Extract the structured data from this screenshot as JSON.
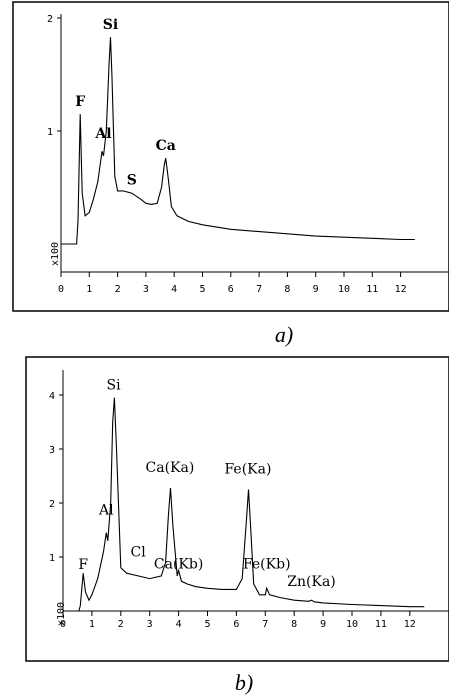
{
  "chart_data": [
    {
      "type": "line",
      "caption": "a)",
      "xlim": [
        0,
        12.5
      ],
      "ylim": [
        0,
        2
      ],
      "x_ticks": [
        "0",
        "1",
        "2",
        "3",
        "4",
        "5",
        "6",
        "7",
        "8",
        "9",
        "10",
        "11",
        "12"
      ],
      "y_ticks": [
        "1",
        "2"
      ],
      "y_scale_label": "x100",
      "peak_labels": [
        {
          "text": "F",
          "x": 0.68,
          "y": 1.15
        },
        {
          "text": "Al",
          "x": 1.5,
          "y": 0.83
        },
        {
          "text": "Si",
          "x": 1.75,
          "y": 1.83
        },
        {
          "text": "S",
          "x": 2.5,
          "y": 0.42
        },
        {
          "text": "Ca",
          "x": 3.7,
          "y": 0.76
        }
      ],
      "series": [
        {
          "x": [
            0,
            0.55,
            0.6,
            0.68,
            0.75,
            0.85,
            1.0,
            1.15,
            1.3,
            1.45,
            1.5,
            1.6,
            1.7,
            1.75,
            1.8,
            1.9,
            2.0,
            2.2,
            2.5,
            2.8,
            3.0,
            3.2,
            3.4,
            3.55,
            3.65,
            3.7,
            3.78,
            3.9,
            4.1,
            4.5,
            5,
            6,
            7,
            8,
            9,
            10,
            11,
            12,
            12.5
          ],
          "y": [
            0,
            0,
            0.2,
            1.15,
            0.45,
            0.25,
            0.28,
            0.4,
            0.55,
            0.82,
            0.78,
            1.0,
            1.6,
            1.83,
            1.5,
            0.6,
            0.47,
            0.47,
            0.45,
            0.4,
            0.36,
            0.35,
            0.36,
            0.5,
            0.7,
            0.76,
            0.6,
            0.33,
            0.25,
            0.2,
            0.17,
            0.13,
            0.11,
            0.09,
            0.07,
            0.06,
            0.05,
            0.04,
            0.04
          ]
        }
      ]
    },
    {
      "type": "line",
      "caption": "b)",
      "xlim": [
        0,
        12.5
      ],
      "ylim": [
        0,
        4
      ],
      "x_ticks": [
        "0",
        "1",
        "2",
        "3",
        "4",
        "5",
        "6",
        "7",
        "8",
        "9",
        "10",
        "11",
        "12"
      ],
      "y_ticks": [
        "1",
        "2",
        "3",
        "4"
      ],
      "y_scale_label": "x100",
      "peak_labels": [
        {
          "text": "F",
          "x": 0.7,
          "y": 0.7
        },
        {
          "text": "Al",
          "x": 1.5,
          "y": 1.45
        },
        {
          "text": "Si",
          "x": 1.75,
          "y": 3.95
        },
        {
          "text": "Cl",
          "x": 2.6,
          "y": 0.75
        },
        {
          "text": "Ca(Ka)",
          "x": 3.7,
          "y": 2.28
        },
        {
          "text": "Ca(Kb)",
          "x": 4.0,
          "y": 0.75
        },
        {
          "text": "Fe(Ka)",
          "x": 6.4,
          "y": 2.25
        },
        {
          "text": "Fe(Kb)",
          "x": 7.05,
          "y": 0.42
        },
        {
          "text": "Zn(Ka)",
          "x": 8.6,
          "y": 0.2
        }
      ],
      "series": [
        {
          "x": [
            0,
            0.55,
            0.6,
            0.7,
            0.78,
            0.9,
            1.0,
            1.2,
            1.4,
            1.5,
            1.55,
            1.65,
            1.72,
            1.78,
            1.85,
            2.0,
            2.2,
            2.6,
            3.0,
            3.4,
            3.55,
            3.65,
            3.72,
            3.8,
            3.95,
            4.0,
            4.1,
            4.3,
            4.6,
            5,
            5.5,
            6.0,
            6.2,
            6.35,
            6.42,
            6.5,
            6.6,
            6.8,
            7.0,
            7.05,
            7.15,
            7.5,
            8,
            8.5,
            8.6,
            8.7,
            9,
            10,
            11,
            12,
            12.5
          ],
          "y": [
            0,
            0,
            0.1,
            0.7,
            0.35,
            0.2,
            0.3,
            0.6,
            1.1,
            1.45,
            1.3,
            2.0,
            3.5,
            3.95,
            3.0,
            0.8,
            0.7,
            0.65,
            0.6,
            0.65,
            0.9,
            1.8,
            2.28,
            1.6,
            0.65,
            0.75,
            0.55,
            0.5,
            0.45,
            0.42,
            0.4,
            0.4,
            0.6,
            1.7,
            2.25,
            1.5,
            0.5,
            0.3,
            0.3,
            0.42,
            0.3,
            0.25,
            0.2,
            0.18,
            0.2,
            0.17,
            0.15,
            0.12,
            0.1,
            0.08,
            0.08
          ]
        }
      ]
    }
  ]
}
